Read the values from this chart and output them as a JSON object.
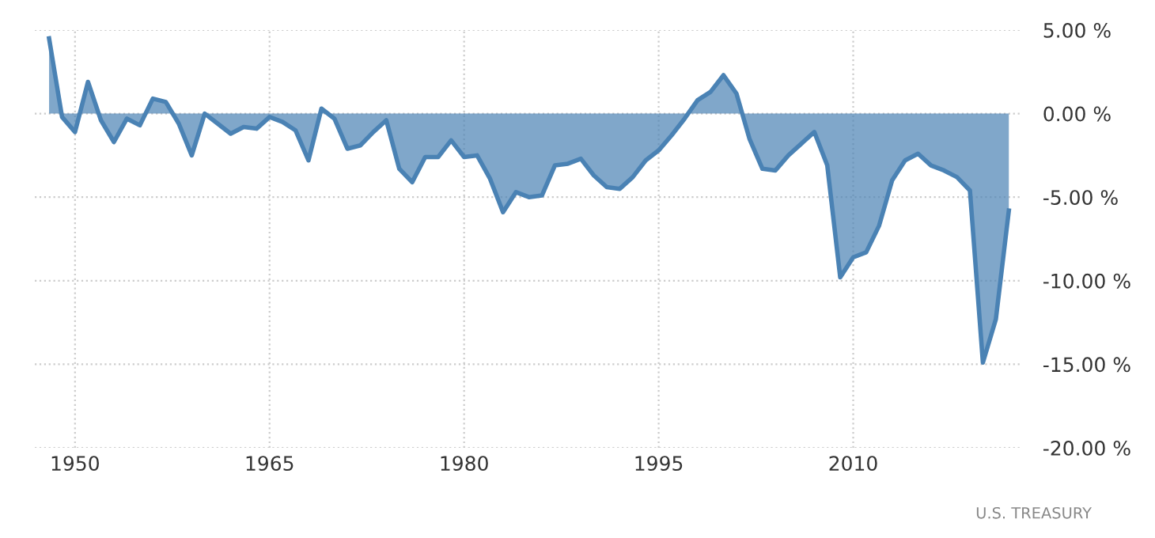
{
  "chart_data": {
    "type": "area",
    "x": [
      1948,
      1949,
      1950,
      1951,
      1952,
      1953,
      1954,
      1955,
      1956,
      1957,
      1958,
      1959,
      1960,
      1961,
      1962,
      1963,
      1964,
      1965,
      1966,
      1967,
      1968,
      1969,
      1970,
      1971,
      1972,
      1973,
      1974,
      1975,
      1976,
      1977,
      1978,
      1979,
      1980,
      1981,
      1982,
      1983,
      1984,
      1985,
      1986,
      1987,
      1988,
      1989,
      1990,
      1991,
      1992,
      1993,
      1994,
      1995,
      1996,
      1997,
      1998,
      1999,
      2000,
      2001,
      2002,
      2003,
      2004,
      2005,
      2006,
      2007,
      2008,
      2009,
      2010,
      2011,
      2012,
      2013,
      2014,
      2015,
      2016,
      2017,
      2018,
      2019,
      2020,
      2021,
      2022
    ],
    "series": [
      {
        "color": "#4a82b4",
        "values": [
          4.5,
          -0.2,
          -1.1,
          1.9,
          -0.4,
          -1.7,
          -0.3,
          -0.7,
          0.9,
          0.7,
          -0.6,
          -2.5,
          0.0,
          -0.6,
          -1.2,
          -0.8,
          -0.9,
          -0.2,
          -0.5,
          -1.0,
          -2.8,
          0.3,
          -0.3,
          -2.1,
          -1.9,
          -1.1,
          -0.4,
          -3.3,
          -4.1,
          -2.6,
          -2.6,
          -1.6,
          -2.6,
          -2.5,
          -3.9,
          -5.9,
          -4.7,
          -5.0,
          -4.9,
          -3.1,
          -3.0,
          -2.7,
          -3.7,
          -4.4,
          -4.5,
          -3.8,
          -2.8,
          -2.2,
          -1.3,
          -0.3,
          0.8,
          1.3,
          2.3,
          1.2,
          -1.5,
          -3.3,
          -3.4,
          -2.5,
          -1.8,
          -1.1,
          -3.1,
          -9.8,
          -8.6,
          -8.3,
          -6.7,
          -4.0,
          -2.8,
          -2.4,
          -3.1,
          -3.4,
          -3.8,
          -4.6,
          -14.9,
          -12.3,
          -5.8
        ]
      }
    ],
    "xlim": [
      1946.9,
      2022.9
    ],
    "xticks": [
      1950,
      1965,
      1980,
      1995,
      2010
    ],
    "ylim": [
      -20,
      5
    ],
    "yticks": [
      {
        "value": 5,
        "label": "5.00 %"
      },
      {
        "value": 0,
        "label": "0.00 %"
      },
      {
        "value": -5,
        "label": "-5.00 %"
      },
      {
        "value": -10,
        "label": "-10.00 %"
      },
      {
        "value": -15,
        "label": "-15.00 %"
      },
      {
        "value": -20,
        "label": "-20.00 %"
      }
    ],
    "grid": true,
    "legend": false,
    "annotations": [
      "U.S. TREASURY"
    ]
  }
}
